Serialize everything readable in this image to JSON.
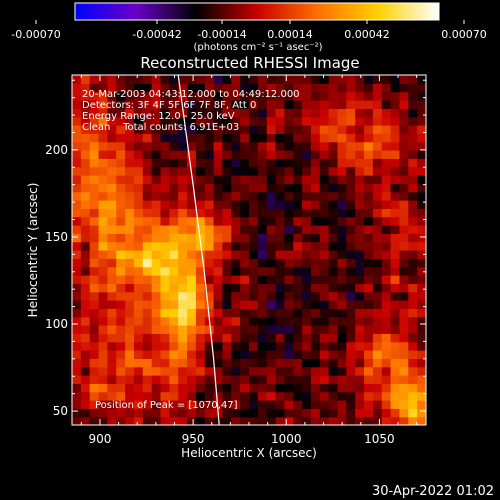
{
  "colorbar": {
    "ticks": [
      "-0.00070",
      "-0.00042",
      "-0.00014",
      "0.00014",
      "0.00042",
      "0.00070"
    ],
    "unit_label": "(photons cm⁻² s⁻¹ asec⁻²)",
    "colors": [
      "#0000ff",
      "#6a00c8",
      "#000000",
      "#c80000",
      "#ff7000",
      "#ffd000",
      "#ffffff"
    ]
  },
  "chart_data": {
    "type": "heatmap",
    "title": "Reconstructed RHESSI Image",
    "xlabel": "Heliocentric X (arcsec)",
    "ylabel": "Heliocentric Y (arcsec)",
    "xlim": [
      885,
      1075
    ],
    "ylim": [
      42,
      243
    ],
    "x_ticks": [
      900,
      950,
      1000,
      1050
    ],
    "y_ticks": [
      50,
      100,
      150,
      200
    ],
    "vmin": -0.0007,
    "vmax": 0.0007,
    "annotations": {
      "time": "20-Mar-2003 04:43:12.000 to 04:49:12.000",
      "detectors": "Detectors: 3F 4F 5F 6F 7F 8F, Att 0",
      "energy": "Energy Range: 12.0 - 25.0 keV",
      "clean": "Clean    Total counts: 6.91E+03",
      "peak": "Position of Peak = [1070,47]"
    },
    "limb_curve": [
      [
        942,
        243
      ],
      [
        950,
        180
      ],
      [
        956,
        130
      ],
      [
        961,
        80
      ],
      [
        964,
        42
      ]
    ],
    "sources": [
      {
        "x": 947,
        "y": 108,
        "sx": 9,
        "sy": 16,
        "amp": 1.0
      },
      {
        "x": 955,
        "y": 150,
        "sx": 9,
        "sy": 10,
        "amp": 0.9
      },
      {
        "x": 935,
        "y": 135,
        "sx": 10,
        "sy": 14,
        "amp": 0.65
      },
      {
        "x": 915,
        "y": 140,
        "sx": 18,
        "sy": 30,
        "amp": 0.55
      },
      {
        "x": 895,
        "y": 190,
        "sx": 15,
        "sy": 35,
        "amp": 0.5
      },
      {
        "x": 915,
        "y": 70,
        "sx": 25,
        "sy": 18,
        "amp": 0.45
      },
      {
        "x": 1055,
        "y": 75,
        "sx": 13,
        "sy": 20,
        "amp": 0.55
      },
      {
        "x": 1068,
        "y": 52,
        "sx": 8,
        "sy": 10,
        "amp": 0.7
      },
      {
        "x": 1048,
        "y": 205,
        "sx": 14,
        "sy": 14,
        "amp": 0.5
      },
      {
        "x": 1020,
        "y": 212,
        "sx": 12,
        "sy": 10,
        "amp": 0.35
      },
      {
        "x": 1060,
        "y": 150,
        "sx": 10,
        "sy": 20,
        "amp": 0.3
      }
    ]
  },
  "footer": {
    "date": "30-Apr-2022 01:02"
  }
}
